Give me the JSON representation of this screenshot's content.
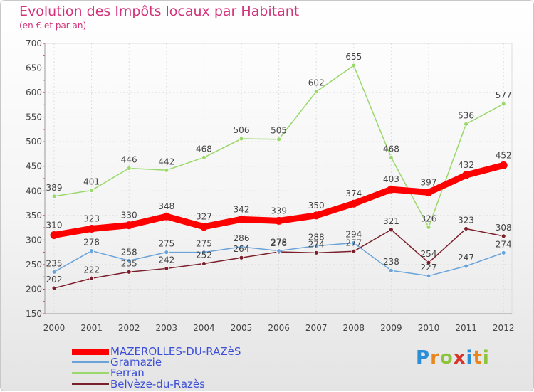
{
  "chart_data": {
    "type": "line",
    "title": "Evolution des Impôts locaux par Habitant",
    "subtitle": "(en € et par an)",
    "x": [
      "2000",
      "2001",
      "2002",
      "2003",
      "2004",
      "2005",
      "2006",
      "2007",
      "2008",
      "2009",
      "2010",
      "2011",
      "2012"
    ],
    "ylim": [
      150,
      700
    ],
    "yticks": [
      150,
      200,
      250,
      300,
      350,
      400,
      450,
      500,
      550,
      600,
      650,
      700
    ],
    "grid": true,
    "legend_position": "bottom-left",
    "series": [
      {
        "name": "MAZEROLLES-DU-RAZèS",
        "color": "#ff0000",
        "values": [
          310,
          323,
          330,
          348,
          327,
          342,
          339,
          350,
          374,
          403,
          397,
          432,
          452
        ]
      },
      {
        "name": "Gramazie",
        "color": "#6aa3d9",
        "values": [
          235,
          278,
          258,
          275,
          275,
          286,
          278,
          288,
          294,
          238,
          227,
          247,
          274
        ]
      },
      {
        "name": "Ferran",
        "color": "#9ad86b",
        "values": [
          389,
          401,
          446,
          442,
          468,
          506,
          505,
          602,
          655,
          468,
          326,
          536,
          577
        ]
      },
      {
        "name": "Belvèze-du-Razès",
        "color": "#7a1f2b",
        "values": [
          202,
          222,
          235,
          242,
          252,
          264,
          276,
          274,
          277,
          321,
          254,
          323,
          308
        ]
      }
    ]
  },
  "logo": {
    "letters": [
      "P",
      "r",
      "o",
      "x",
      "i",
      "t",
      "i"
    ],
    "colors": [
      "#2b8fd8",
      "#e8871e",
      "#8cc43c",
      "#d8342c",
      "#2b8fd8",
      "#e8871e",
      "#8cc43c"
    ]
  }
}
